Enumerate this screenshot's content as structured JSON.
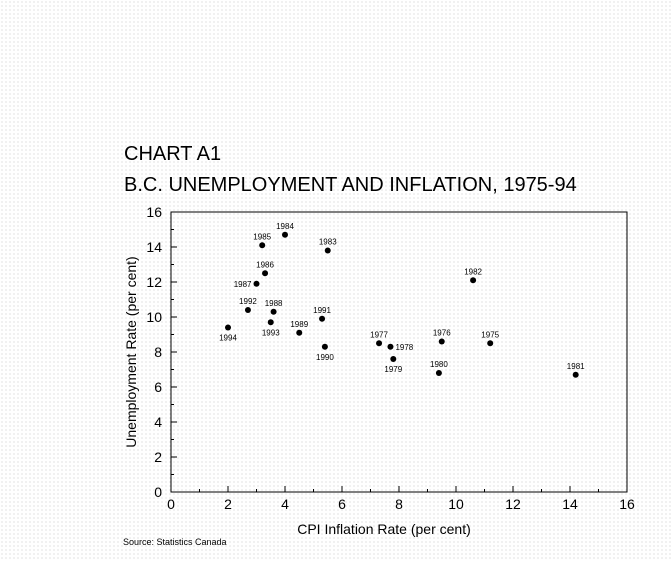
{
  "chart_data": {
    "type": "scatter",
    "label": "CHART A1",
    "title": "B.C. UNEMPLOYMENT AND INFLATION, 1975-94",
    "xlabel": "CPI Inflation Rate (per cent)",
    "ylabel": "Unemployment Rate (per cent)",
    "xlim": [
      0,
      16
    ],
    "ylim": [
      0,
      16
    ],
    "xticks": [
      "0",
      "2",
      "4",
      "6",
      "8",
      "10",
      "12",
      "14",
      "16"
    ],
    "yticks": [
      "0",
      "2",
      "4",
      "6",
      "8",
      "10",
      "12",
      "14",
      "16"
    ],
    "grid": false,
    "points": [
      {
        "label": "1975",
        "x": 11.2,
        "y": 8.5
      },
      {
        "label": "1976",
        "x": 9.5,
        "y": 8.6
      },
      {
        "label": "1977",
        "x": 7.3,
        "y": 8.5
      },
      {
        "label": "1978",
        "x": 7.7,
        "y": 8.3
      },
      {
        "label": "1979",
        "x": 7.8,
        "y": 7.6
      },
      {
        "label": "1980",
        "x": 9.4,
        "y": 6.8
      },
      {
        "label": "1981",
        "x": 14.2,
        "y": 6.7
      },
      {
        "label": "1982",
        "x": 10.6,
        "y": 12.1
      },
      {
        "label": "1983",
        "x": 5.5,
        "y": 13.8
      },
      {
        "label": "1984",
        "x": 4.0,
        "y": 14.7
      },
      {
        "label": "1985",
        "x": 3.2,
        "y": 14.1
      },
      {
        "label": "1986",
        "x": 3.3,
        "y": 12.5
      },
      {
        "label": "1987",
        "x": 3.0,
        "y": 11.9
      },
      {
        "label": "1988",
        "x": 3.6,
        "y": 10.3
      },
      {
        "label": "1989",
        "x": 4.5,
        "y": 9.1
      },
      {
        "label": "1990",
        "x": 5.4,
        "y": 8.3
      },
      {
        "label": "1991",
        "x": 5.3,
        "y": 9.9
      },
      {
        "label": "1992",
        "x": 2.7,
        "y": 10.4
      },
      {
        "label": "1993",
        "x": 3.5,
        "y": 9.7
      },
      {
        "label": "1994",
        "x": 2.0,
        "y": 9.4
      }
    ],
    "source": "Source: Statistics Canada"
  }
}
